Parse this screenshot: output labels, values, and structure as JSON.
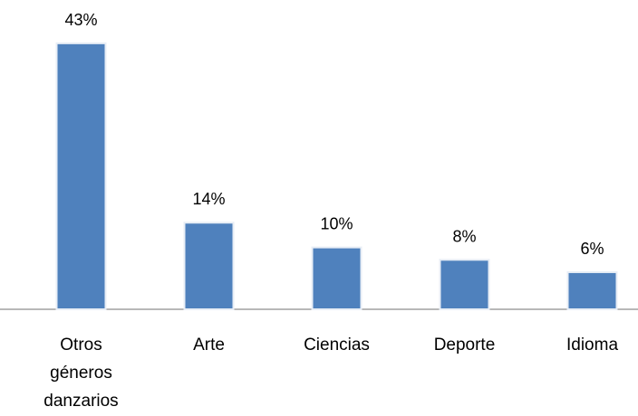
{
  "chart_data": {
    "type": "bar",
    "categories": [
      "Otros géneros danzarios",
      "Arte",
      "Ciencias",
      "Deporte",
      "Idioma"
    ],
    "values": [
      43,
      14,
      10,
      8,
      6
    ],
    "value_labels": [
      "43%",
      "14%",
      "10%",
      "8%",
      "6%"
    ],
    "color": "#4f81bd"
  }
}
